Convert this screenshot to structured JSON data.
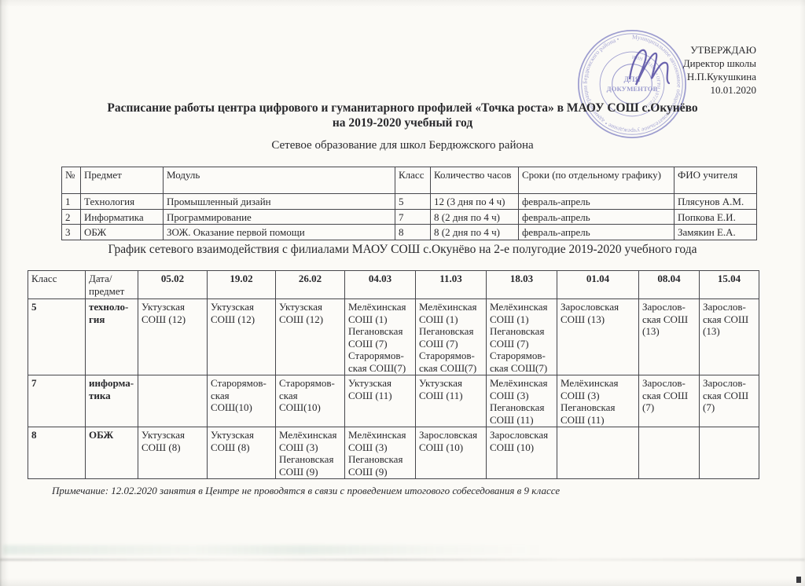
{
  "approval": {
    "lines": [
      "УТВЕРЖДАЮ",
      "Директор школы",
      "Н.П.Кукушкина",
      "10.01.2020"
    ]
  },
  "stamp": {
    "ink_color": "#8d8dc9",
    "ring_text": "Муниципальное автономное общеобразовательное учреждение • администрации Бердюжского района •",
    "inner_ring_text": "ИНН 7211004 • ОГРН 107272015 •",
    "center_line1": "ДЛЯ",
    "center_line2": "ДОКУМЕНТОВ"
  },
  "title_line1": "Расписание работы центра цифрового и гуманитарного профилей «Точка роста» в МАОУ СОШ с.Окунёво",
  "title_line2": "на 2019-2020 учебный год",
  "subtitle": "Сетевое образование для школ Бердюжского района",
  "schedule_table": {
    "headers": [
      "№",
      "Предмет",
      "Модуль",
      "Класс",
      "Количество часов",
      "Сроки (по отдельному графику)",
      "ФИО учителя"
    ],
    "rows": [
      [
        "1",
        "Технология",
        "Промышленный дизайн",
        "5",
        "12 (3 дня по 4 ч)",
        "февраль-апрель",
        "Плясунов А.М."
      ],
      [
        "2",
        "Информатика",
        "Программирование",
        "7",
        "8 (2 дня по 4 ч)",
        "февраль-апрель",
        "Попкова Е.И."
      ],
      [
        "3",
        "ОБЖ",
        "ЗОЖ. Оказание первой помощи",
        "8",
        "8 (2 дня по 4 ч)",
        "февраль-апрель",
        "Замякин Е.А."
      ]
    ]
  },
  "grid_title": "График сетевого взаимодействия с филиалами МАОУ СОШ с.Окунёво на 2-е полугодие 2019-2020 учебного года",
  "grid_table": {
    "headers": [
      "Класс",
      "Дата/ предмет",
      "05.02",
      "19.02",
      "26.02",
      "04.03",
      "11.03",
      "18.03",
      "01.04",
      "08.04",
      "15.04"
    ],
    "rows": [
      [
        "5",
        "техноло-гия",
        "Уктузская СОШ (12)",
        "Уктузская СОШ (12)",
        "Уктузская СОШ (12)",
        "Мелёхинская СОШ (1) Пегановская СОШ (7) Старорямов-ская СОШ(7)",
        "Мелёхинская СОШ (1) Пегановская СОШ (7) Старорямов-ская СОШ(7)",
        "Мелёхинская СОШ (1) Пегановская СОШ (7) Старорямов-ская СОШ(7)",
        "Зарословская СОШ (13)",
        "Зарослов-ская СОШ (13)",
        "Зарослов-ская СОШ (13)"
      ],
      [
        "7",
        "информа-тика",
        "",
        "Старорямов-ская СОШ(10)",
        "Старорямов-ская СОШ(10)",
        "Уктузская СОШ (11)",
        "Уктузская СОШ (11)",
        "Мелёхинская СОШ (3) Пегановская СОШ (11)",
        "Мелёхинская СОШ (3) Пегановская СОШ (11)",
        "Зарослов-ская СОШ (7)",
        "Зарослов-ская СОШ (7)"
      ],
      [
        "8",
        "ОБЖ",
        "Уктузская СОШ (8)",
        "Уктузская СОШ (8)",
        "Мелёхинская СОШ (3) Пегановская СОШ (9)",
        "Мелёхинская СОШ (3) Пегановская СОШ (9)",
        "Зарословская СОШ (10)",
        "Зарословская СОШ (10)",
        "",
        "",
        ""
      ]
    ]
  },
  "note": "Примечание: 12.02.2020 занятия в Центре не проводятся в связи с проведением итогового собеседования в 9 классе"
}
